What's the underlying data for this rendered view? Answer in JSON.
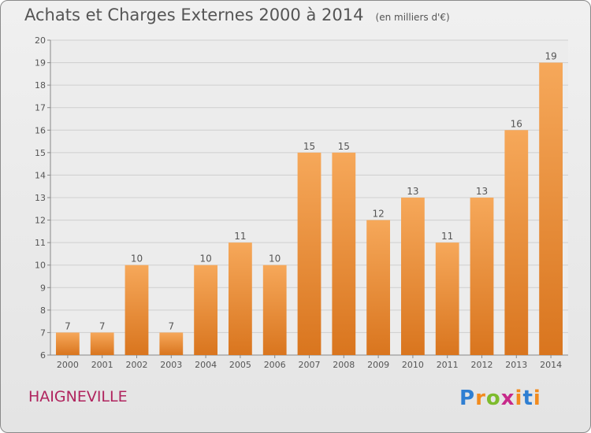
{
  "header": {
    "title": "Achats et Charges Externes 2000 à 2014",
    "unit": "(en milliers d'€)"
  },
  "footer": {
    "commune": "HAIGNEVILLE",
    "brand": "Proxiti"
  },
  "colors": {
    "bar_top": "#f6a85a",
    "bar_bottom": "#d9751e",
    "grid": "#cfcfcf",
    "axis_text": "#555555",
    "commune": "#b0245e"
  },
  "chart_data": {
    "type": "bar",
    "title": "Achats et Charges Externes 2000 à 2014",
    "subtitle": "(en milliers d'€)",
    "xlabel": "",
    "ylabel": "",
    "categories": [
      "2000",
      "2001",
      "2002",
      "2003",
      "2004",
      "2005",
      "2006",
      "2007",
      "2008",
      "2009",
      "2010",
      "2011",
      "2012",
      "2013",
      "2014"
    ],
    "values": [
      7,
      7,
      10,
      7,
      10,
      11,
      10,
      15,
      15,
      12,
      13,
      11,
      13,
      16,
      19
    ],
    "ylim": [
      6,
      20
    ],
    "yticks": [
      6,
      7,
      8,
      9,
      10,
      11,
      12,
      13,
      14,
      15,
      16,
      17,
      18,
      19,
      20
    ],
    "grid": true,
    "legend": "none",
    "data_labels": true
  }
}
